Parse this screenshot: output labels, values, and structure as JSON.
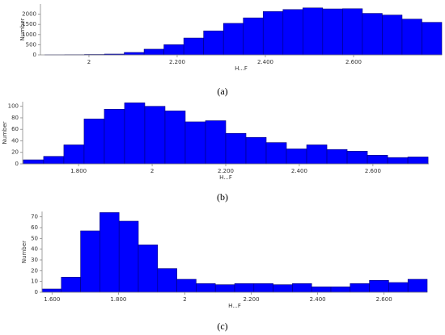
{
  "chart_data": [
    {
      "type": "histogram",
      "caption": "(a)",
      "x_label": "H...F",
      "y_label": "Number",
      "color": "#0000ff",
      "bins": [
        1.9,
        1.945,
        1.99,
        2.035,
        2.08,
        2.125,
        2.17,
        2.215,
        2.26,
        2.305,
        2.35,
        2.395,
        2.44,
        2.485,
        2.53,
        2.575,
        2.62,
        2.665,
        2.71,
        2.755,
        2.8
      ],
      "values": [
        5,
        10,
        20,
        40,
        120,
        280,
        500,
        830,
        1180,
        1550,
        1820,
        2130,
        2230,
        2310,
        2260,
        2270,
        2040,
        1960,
        1760,
        1600
      ],
      "xlim": [
        1.89,
        2.8
      ],
      "ylim": [
        0,
        2500
      ],
      "xticks": [
        2,
        {
          "value": 2.2,
          "label": "2.200"
        },
        {
          "value": 2.4,
          "label": "2.400"
        },
        {
          "value": 2.6,
          "label": "2.600"
        }
      ],
      "yticks": [
        0,
        500,
        1000,
        1500,
        2000
      ]
    },
    {
      "type": "histogram",
      "caption": "(b)",
      "x_label": "H...F",
      "y_label": "Number",
      "color": "#0000ff",
      "bins": [
        1.65,
        1.705,
        1.76,
        1.815,
        1.87,
        1.925,
        1.98,
        2.035,
        2.09,
        2.145,
        2.2,
        2.255,
        2.31,
        2.365,
        2.42,
        2.475,
        2.53,
        2.585,
        2.64,
        2.695,
        2.75
      ],
      "values": [
        7,
        13,
        33,
        78,
        95,
        106,
        100,
        92,
        73,
        75,
        53,
        46,
        37,
        26,
        33,
        25,
        22,
        15,
        11,
        12
      ],
      "xlim": [
        1.648,
        2.752
      ],
      "ylim": [
        0,
        108
      ],
      "xticks": [
        {
          "value": 1.8,
          "label": "1.800"
        },
        2,
        {
          "value": 2.2,
          "label": "2.200"
        },
        {
          "value": 2.4,
          "label": "2.400"
        },
        {
          "value": 2.6,
          "label": "2.600"
        }
      ],
      "yticks": [
        0,
        20,
        40,
        60,
        80,
        100
      ]
    },
    {
      "type": "histogram",
      "caption": "(c)",
      "x_label": "H...F",
      "y_label": "Number",
      "color": "#0000ff",
      "bins": [
        1.57,
        1.628,
        1.686,
        1.744,
        1.802,
        1.86,
        1.918,
        1.976,
        2.034,
        2.092,
        2.15,
        2.208,
        2.266,
        2.324,
        2.382,
        2.44,
        2.498,
        2.556,
        2.614,
        2.672,
        2.73
      ],
      "values": [
        3,
        14,
        57,
        74,
        66,
        44,
        22,
        12,
        8,
        7,
        8,
        8,
        7,
        8,
        5,
        5,
        8,
        11,
        9,
        12
      ],
      "xlim": [
        1.57,
        2.73
      ],
      "ylim": [
        0,
        75
      ],
      "xticks": [
        {
          "value": 1.6,
          "label": "1.600"
        },
        {
          "value": 1.8,
          "label": "1.800"
        },
        2,
        {
          "value": 2.2,
          "label": "2.200"
        },
        {
          "value": 2.4,
          "label": "2.400"
        },
        {
          "value": 2.6,
          "label": "2.600"
        }
      ],
      "yticks": [
        0,
        10,
        20,
        30,
        40,
        50,
        60,
        70
      ]
    }
  ]
}
